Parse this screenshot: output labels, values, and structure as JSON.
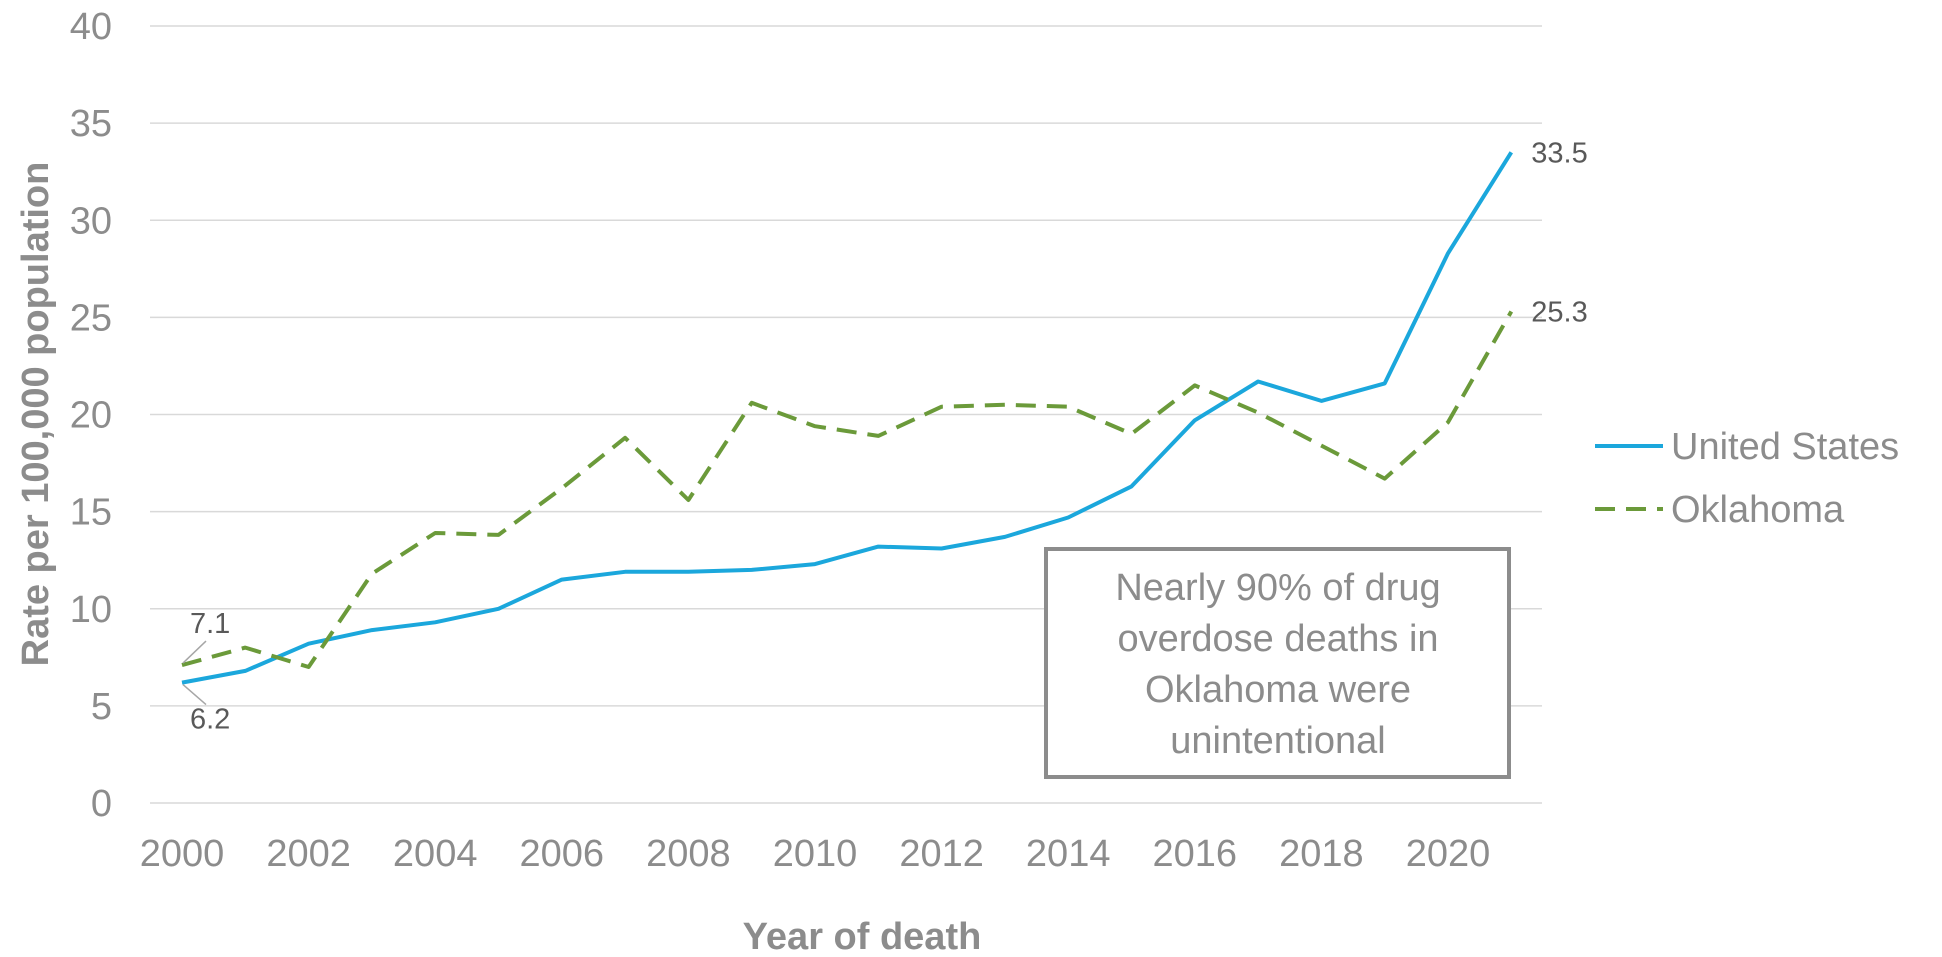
{
  "chart_data": {
    "type": "line",
    "x": [
      2000,
      2001,
      2002,
      2003,
      2004,
      2005,
      2006,
      2007,
      2008,
      2009,
      2010,
      2011,
      2012,
      2013,
      2014,
      2015,
      2016,
      2017,
      2018,
      2019,
      2020,
      2021
    ],
    "x_ticks": [
      "2000",
      "2002",
      "2004",
      "2006",
      "2008",
      "2010",
      "2012",
      "2014",
      "2016",
      "2018",
      "2020"
    ],
    "y_ticks": [
      "0",
      "5",
      "10",
      "15",
      "20",
      "25",
      "30",
      "35",
      "40"
    ],
    "xlabel": "Year of death",
    "ylabel": "Rate per 100,000 population",
    "ylim": [
      0,
      40
    ],
    "grid": true,
    "legend_position": "right",
    "series": [
      {
        "name": "United States",
        "color": "#1ba7dc",
        "style": "solid",
        "values": [
          6.2,
          6.8,
          8.2,
          8.9,
          9.3,
          10.0,
          11.5,
          11.9,
          11.9,
          12.0,
          12.3,
          13.2,
          13.1,
          13.7,
          14.7,
          16.3,
          19.7,
          21.7,
          20.7,
          21.6,
          28.3,
          33.5
        ]
      },
      {
        "name": "Oklahoma",
        "color": "#6b9a3a",
        "style": "dashed",
        "values": [
          7.1,
          8.0,
          7.0,
          11.8,
          13.9,
          13.8,
          16.2,
          18.8,
          15.6,
          20.6,
          19.4,
          18.9,
          20.4,
          20.5,
          20.4,
          19.0,
          21.5,
          20.1,
          18.4,
          16.7,
          19.6,
          25.3
        ]
      }
    ],
    "data_labels": [
      {
        "text": "6.2",
        "series": 0,
        "point": 0
      },
      {
        "text": "7.1",
        "series": 1,
        "point": 0
      },
      {
        "text": "33.5",
        "series": 0,
        "point": 21
      },
      {
        "text": "25.3",
        "series": 1,
        "point": 21
      }
    ],
    "annotation": {
      "lines": [
        "Nearly 90% of drug",
        "overdose deaths in",
        "Oklahoma were",
        "unintentional"
      ]
    }
  }
}
